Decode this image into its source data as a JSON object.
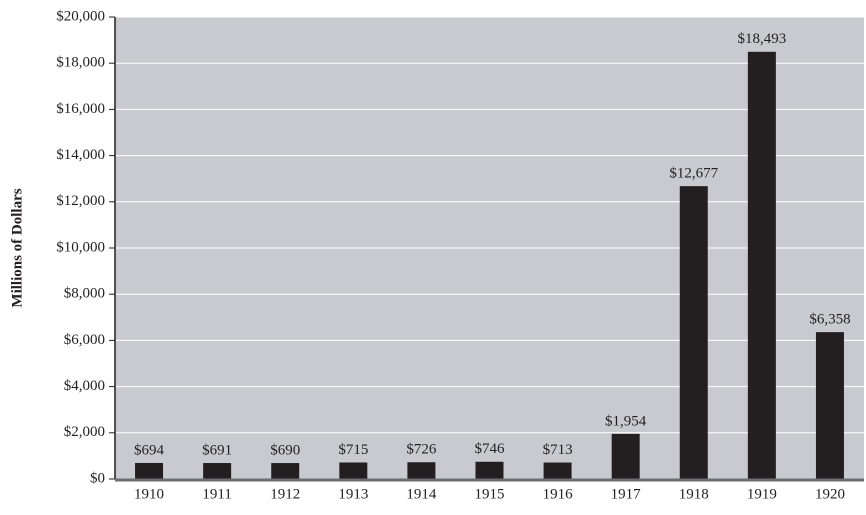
{
  "chart_data": {
    "type": "bar",
    "y_label": "Millions of Dollars",
    "categories": [
      "1910",
      "1911",
      "1912",
      "1913",
      "1914",
      "1915",
      "1916",
      "1917",
      "1918",
      "1919",
      "1920"
    ],
    "values": [
      694,
      691,
      690,
      715,
      726,
      746,
      713,
      1954,
      12677,
      18493,
      6358
    ],
    "value_labels": [
      "$694",
      "$691",
      "$690",
      "$715",
      "$726",
      "$746",
      "$713",
      "$1,954",
      "$12,677",
      "$18,493",
      "$6,358"
    ],
    "color": "#231f20",
    "ylim": [
      0,
      20000
    ],
    "yticks": [
      {
        "value": 0,
        "label": "$0"
      },
      {
        "value": 2000,
        "label": "$2,000"
      },
      {
        "value": 4000,
        "label": "$4,000"
      },
      {
        "value": 6000,
        "label": "$6,000"
      },
      {
        "value": 8000,
        "label": "$8,000"
      },
      {
        "value": 10000,
        "label": "$10,000"
      },
      {
        "value": 12000,
        "label": "$12,000"
      },
      {
        "value": 14000,
        "label": "$14,000"
      },
      {
        "value": 16000,
        "label": "$16,000"
      },
      {
        "value": 18000,
        "label": "$18,000"
      },
      {
        "value": 20000,
        "label": "$20,000"
      }
    ],
    "grid": true
  }
}
